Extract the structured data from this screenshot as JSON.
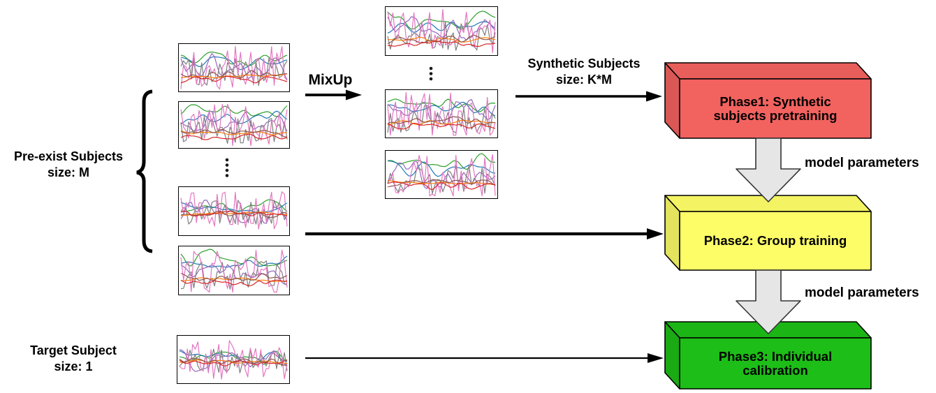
{
  "canvas": {
    "background": "#ffffff"
  },
  "labels": {
    "pre_exist_line1": "Pre-exist Subjects",
    "pre_exist_line2": "size: M",
    "target_line1": "Target Subject",
    "target_line2": "size: 1",
    "mixup": "MixUp",
    "synthetic_line1": "Synthetic Subjects",
    "synthetic_line2": "size: K*M",
    "model_parameters_1": "model parameters",
    "model_parameters_2": "model parameters"
  },
  "phases": [
    {
      "line1": "Phase1: Synthetic",
      "line2": "subjects pretraining",
      "color": "#f2625f"
    },
    {
      "line1": "Phase2: Group training",
      "line2": "",
      "color": "#fdfd68"
    },
    {
      "line1": "Phase3: Individual",
      "line2": "calibration",
      "color": "#1dbe17"
    }
  ],
  "arrows": {
    "line_color": "#000000",
    "model_arrow_fill": "#e6e6e6",
    "model_arrow_stroke": "#333333"
  },
  "signal_plots": {
    "series": [
      {
        "name": "green",
        "color": "#2ca02c",
        "base": 0.26,
        "amp": 0.2,
        "passes": 2
      },
      {
        "name": "blue",
        "color": "#1f77b4",
        "base": 0.37,
        "amp": 0.17,
        "passes": 2
      },
      {
        "name": "purple",
        "color": "#9467bd",
        "base": 0.5,
        "amp": 0.3,
        "passes": 1
      },
      {
        "name": "gray",
        "color": "#7f7f7f",
        "base": 0.6,
        "amp": 0.3,
        "passes": 0
      },
      {
        "name": "pink",
        "color": "#e377c2",
        "base": 0.52,
        "amp": 0.48,
        "passes": 0
      },
      {
        "name": "orange",
        "color": "#ff7f0e",
        "base": 0.68,
        "amp": 0.05,
        "passes": 2
      },
      {
        "name": "brown",
        "color": "#8c564b",
        "base": 0.66,
        "amp": 0.1,
        "passes": 1
      },
      {
        "name": "red",
        "color": "#d62728",
        "base": 0.74,
        "amp": 0.08,
        "passes": 1
      }
    ],
    "plots": [
      {
        "id": "pre-exist-1",
        "variant": "spread",
        "seed": 11
      },
      {
        "id": "pre-exist-2",
        "variant": "spread",
        "seed": 23
      },
      {
        "id": "pre-exist-3",
        "variant": "centered",
        "seed": 37
      },
      {
        "id": "pre-exist-4",
        "variant": "spread",
        "seed": 41
      },
      {
        "id": "target",
        "variant": "centered",
        "seed": 53
      },
      {
        "id": "synthetic-1",
        "variant": "spread",
        "seed": 61
      },
      {
        "id": "synthetic-2",
        "variant": "spread",
        "seed": 71
      },
      {
        "id": "synthetic-3",
        "variant": "spread",
        "seed": 83
      }
    ]
  }
}
